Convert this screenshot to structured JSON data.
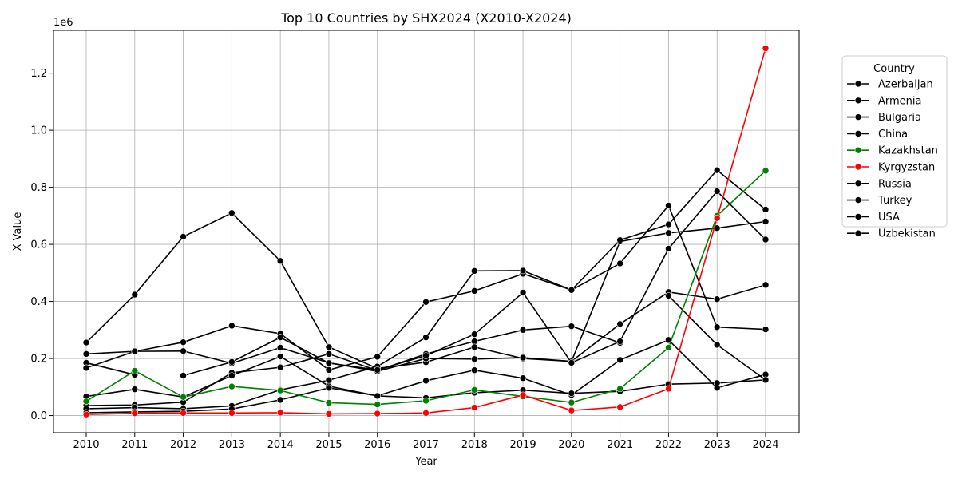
{
  "chart_data": {
    "type": "line",
    "title": "Top 10 Countries by SHX2024 (X2010-X2024)",
    "xlabel": "Year",
    "ylabel": "X Value",
    "y_offset_label": "1e6",
    "y_multiplier": 1000000,
    "ylim": [
      -0.06,
      1.35
    ],
    "yticks": [
      0.0,
      0.2,
      0.4,
      0.6,
      0.8,
      1.0,
      1.2
    ],
    "ytick_labels": [
      "0.0",
      "0.2",
      "0.4",
      "0.6",
      "0.8",
      "1.0",
      "1.2"
    ],
    "x": [
      "2010",
      "2011",
      "2012",
      "2013",
      "2014",
      "2015",
      "2016",
      "2017",
      "2018",
      "2019",
      "2020",
      "2021",
      "2022",
      "2023",
      "2024"
    ],
    "grid": true,
    "legend": {
      "title": "Country",
      "position": "outside-right"
    },
    "series": [
      {
        "name": "Azerbaijan",
        "color": "#000000",
        "values": [
          0.035,
          0.037,
          0.047,
          0.15,
          0.169,
          0.216,
          0.158,
          0.216,
          0.26,
          0.3,
          0.313,
          0.255,
          null,
          null,
          null
        ]
      },
      {
        "name": "Armenia",
        "color": "#000000",
        "values": [
          0.067,
          0.092,
          0.065,
          0.14,
          0.207,
          0.103,
          0.069,
          0.122,
          0.159,
          0.131,
          0.072,
          0.195,
          0.265,
          0.097,
          0.144
        ]
      },
      {
        "name": "Bulgaria",
        "color": "#000000",
        "values": [
          0.185,
          0.143,
          null,
          null,
          null,
          null,
          null,
          null,
          null,
          null,
          null,
          null,
          null,
          null,
          null
        ]
      },
      {
        "name": "China",
        "color": "#000000",
        "values": [
          0.256,
          0.424,
          0.627,
          0.71,
          0.542,
          0.24,
          0.165,
          0.187,
          0.24,
          0.2,
          0.19,
          0.61,
          0.64,
          0.657,
          0.68
        ]
      },
      {
        "name": "Kazakhstan",
        "color": "#008000",
        "values": [
          0.05,
          0.157,
          0.065,
          0.102,
          0.088,
          0.045,
          0.039,
          0.052,
          0.09,
          0.067,
          0.046,
          0.094,
          0.238,
          0.7,
          0.858
        ]
      },
      {
        "name": "Kyrgyzstan",
        "color": "#ff0000",
        "values": [
          0.004,
          0.008,
          0.009,
          0.009,
          0.01,
          0.006,
          0.007,
          0.009,
          0.028,
          0.072,
          0.018,
          0.03,
          0.094,
          0.692,
          1.287
        ]
      },
      {
        "name": "Russia",
        "color": "#000000",
        "values": [
          0.167,
          0.225,
          0.226,
          0.183,
          0.238,
          0.185,
          0.155,
          0.2,
          0.198,
          0.203,
          0.19,
          0.321,
          0.433,
          0.408,
          0.458
        ]
      },
      {
        "name": "Turkey",
        "color": "#000000",
        "values": [
          0.216,
          0.225,
          0.257,
          0.315,
          0.287,
          0.16,
          0.206,
          0.398,
          0.437,
          0.497,
          0.44,
          0.533,
          0.736,
          0.31,
          0.302
        ]
      },
      {
        "name": "USA",
        "color": "#000000",
        "values": [
          0.024,
          0.028,
          0.024,
          0.034,
          0.09,
          0.124,
          0.172,
          0.274,
          0.507,
          0.508,
          0.44,
          0.615,
          0.67,
          0.86,
          0.722
        ]
      },
      {
        "name": "Uzbekistan",
        "color": "#000000",
        "values": [
          0.01,
          0.013,
          0.015,
          0.023,
          0.055,
          0.097,
          0.069,
          0.062,
          0.08,
          0.089,
          0.078,
          0.085,
          0.11,
          0.114,
          0.125
        ]
      },
      {
        "name": "",
        "color": "#000000",
        "values": [
          null,
          null,
          0.14,
          0.188,
          0.274,
          0.184,
          0.16,
          0.21,
          0.285,
          0.431,
          0.185,
          0.26,
          0.585,
          0.786,
          0.617
        ]
      },
      {
        "name": "",
        "color": "#000000",
        "values": [
          null,
          null,
          null,
          null,
          null,
          null,
          null,
          null,
          null,
          null,
          null,
          null,
          0.42,
          0.248,
          0.125
        ]
      }
    ]
  }
}
